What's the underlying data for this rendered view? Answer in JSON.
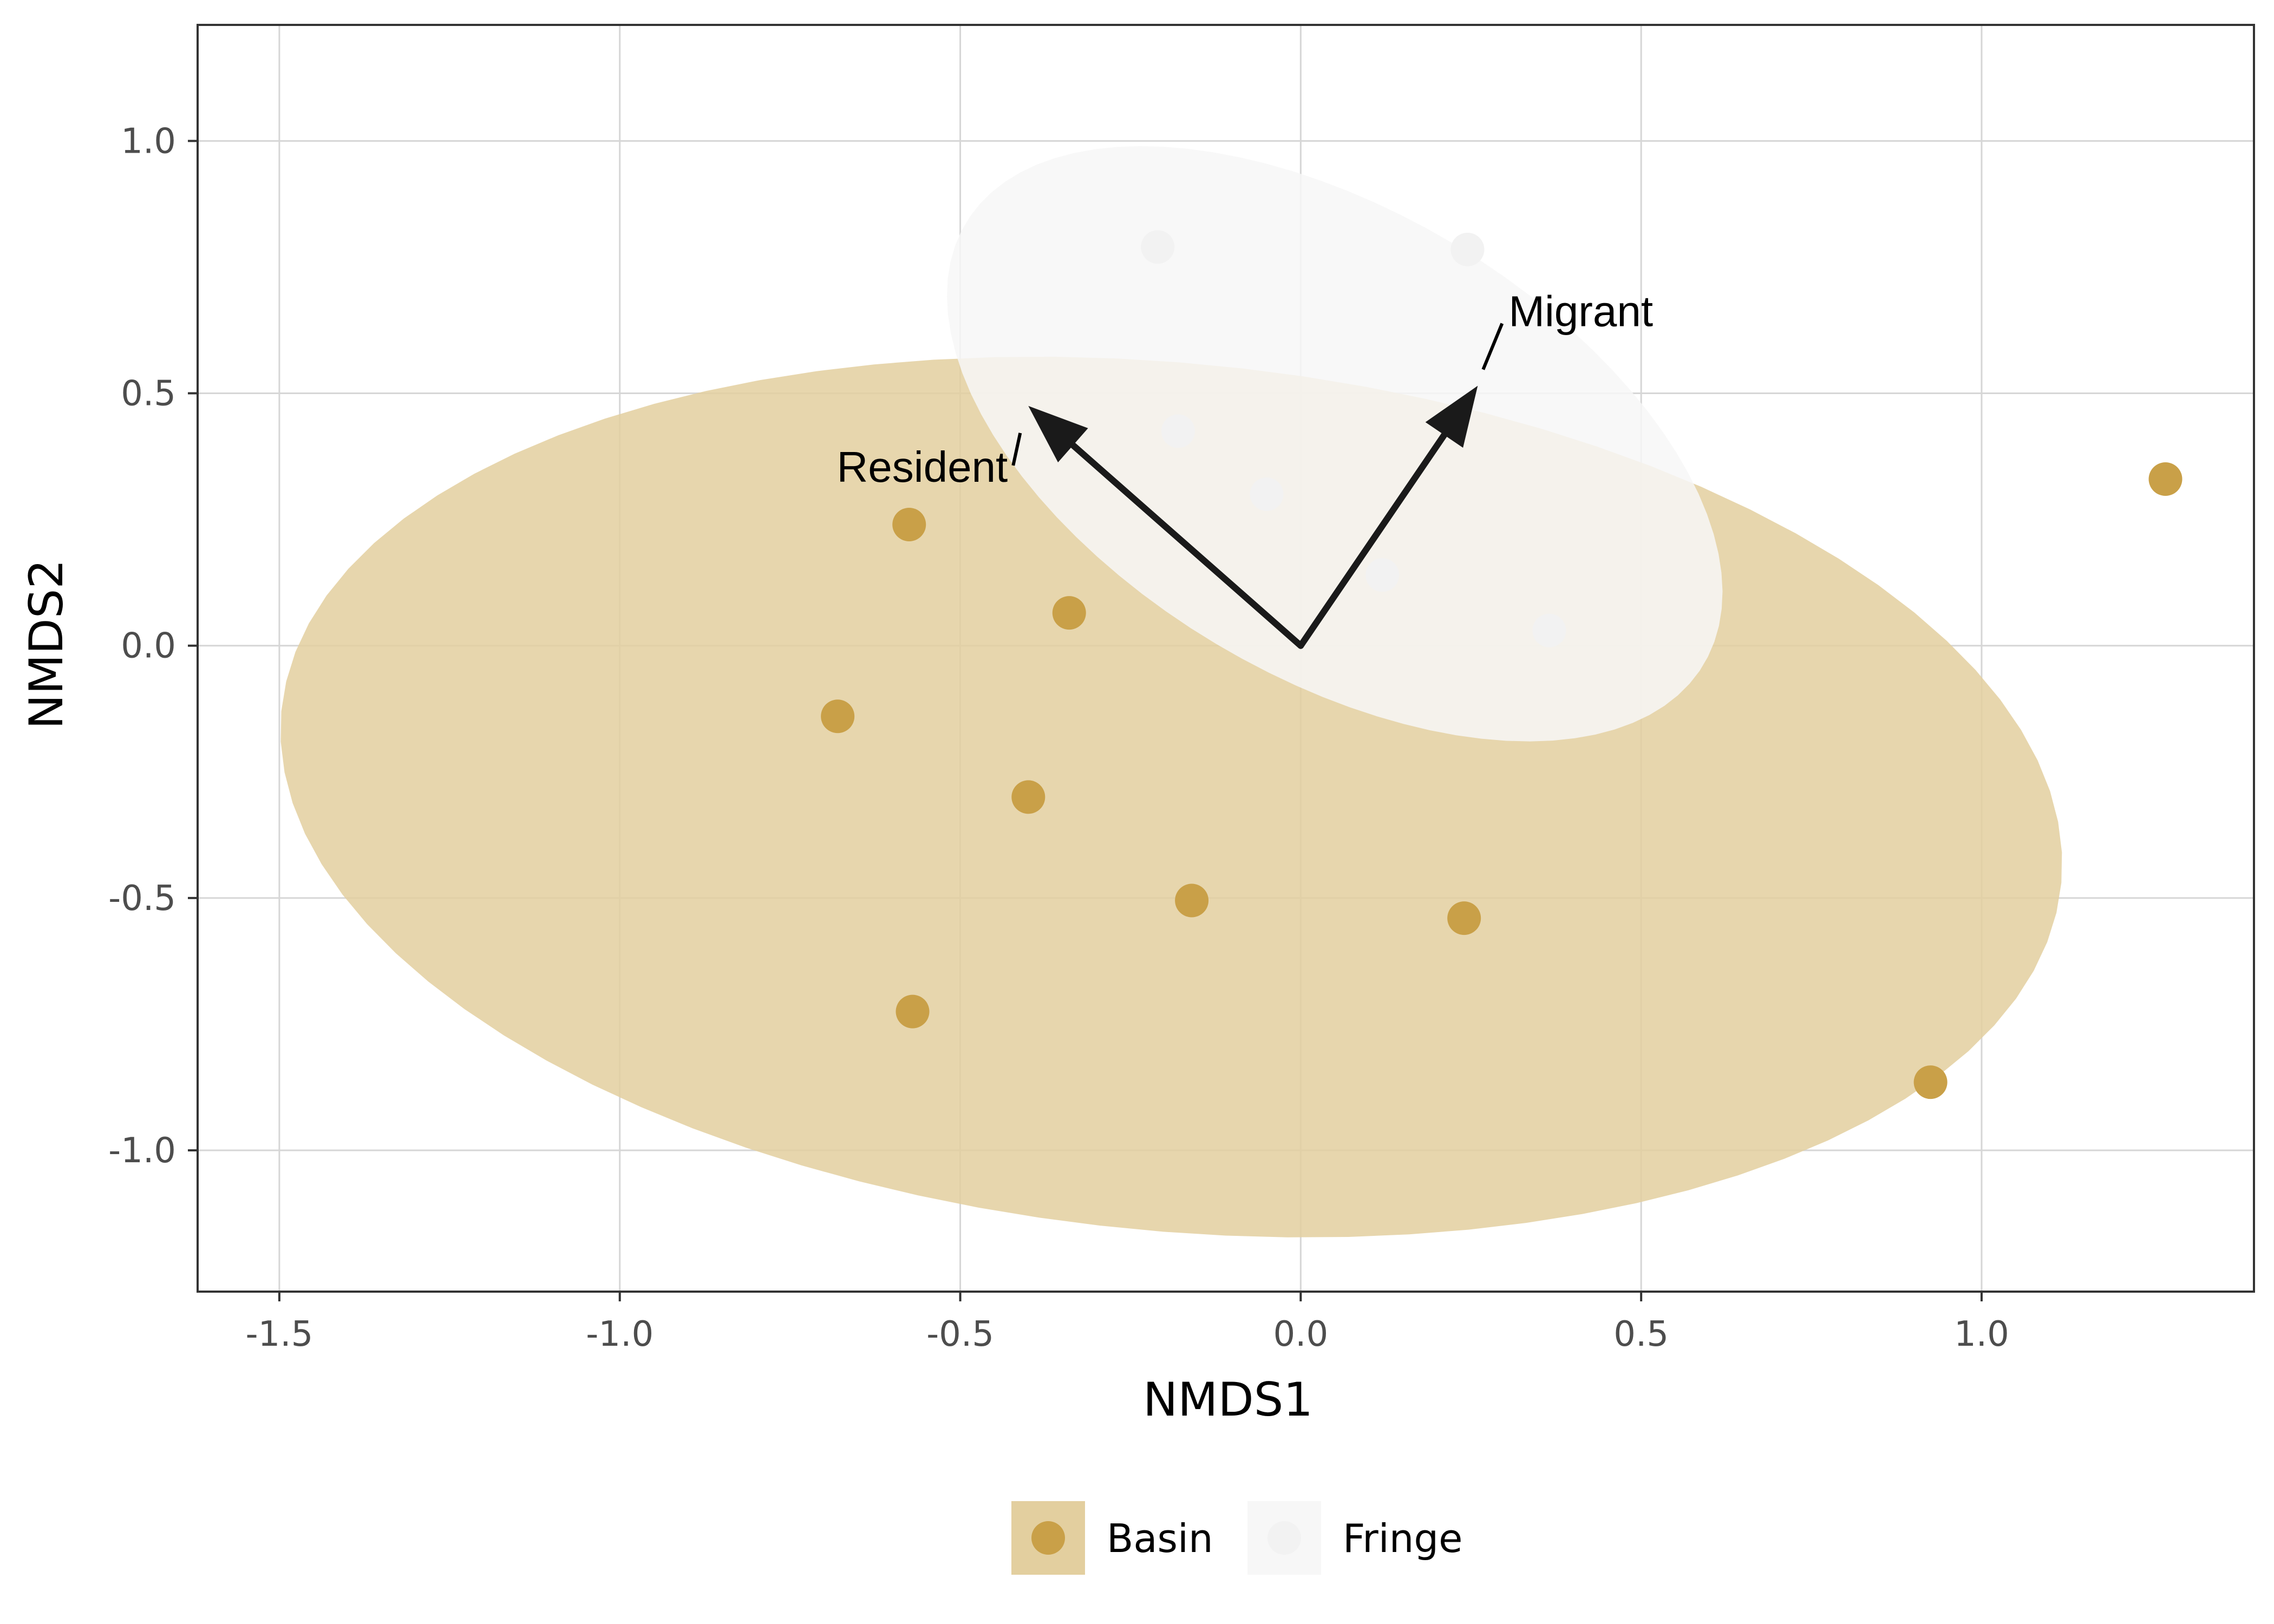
{
  "chart_data": {
    "type": "scatter",
    "xlabel": "NMDS1",
    "ylabel": "NMDS2",
    "xlim": [
      -1.62,
      1.4
    ],
    "ylim": [
      -1.28,
      1.23
    ],
    "x_ticks": [
      -1.5,
      -1.0,
      -0.5,
      0.0,
      0.5,
      1.0
    ],
    "x_tick_labels": [
      "-1.5",
      "-1.0",
      "-0.5",
      "0.0",
      "0.5",
      "1.0"
    ],
    "y_ticks": [
      -1.0,
      -0.5,
      0.0,
      0.5,
      1.0
    ],
    "y_tick_labels": [
      "-1.0",
      "-0.5",
      "0.0",
      "0.5",
      "1.0"
    ],
    "grid": true,
    "legend_position": "bottom",
    "series": [
      {
        "name": "Basin",
        "color": "#c9a048",
        "ellipse_color": "#e3cf9f",
        "points": [
          {
            "x": -0.575,
            "y": 0.24
          },
          {
            "x": -0.34,
            "y": 0.065
          },
          {
            "x": -0.68,
            "y": -0.14
          },
          {
            "x": -0.4,
            "y": -0.3
          },
          {
            "x": -0.16,
            "y": -0.505
          },
          {
            "x": 0.24,
            "y": -0.54
          },
          {
            "x": -0.57,
            "y": -0.725
          },
          {
            "x": 0.925,
            "y": -0.865
          },
          {
            "x": 1.27,
            "y": 0.33
          }
        ],
        "ellipse": {
          "cx": -0.19,
          "cy": -0.3,
          "rx": 1.32,
          "ry": 0.855,
          "angle_deg": -10
        }
      },
      {
        "name": "Fringe",
        "color": "#f2f2f2",
        "ellipse_color": "#f7f7f7",
        "points": [
          {
            "x": -0.21,
            "y": 0.79
          },
          {
            "x": 0.245,
            "y": 0.785
          },
          {
            "x": -0.18,
            "y": 0.425
          },
          {
            "x": -0.05,
            "y": 0.3
          },
          {
            "x": 0.12,
            "y": 0.14
          },
          {
            "x": 0.365,
            "y": 0.03
          }
        ],
        "ellipse": {
          "cx": 0.05,
          "cy": 0.4,
          "rx": 0.71,
          "ry": 0.41,
          "angle_deg": -47
        }
      }
    ],
    "vectors": [
      {
        "label": "Resident",
        "x": -0.4,
        "y": 0.475
      },
      {
        "label": "Migrant",
        "x": 0.26,
        "y": 0.515
      }
    ],
    "legend": {
      "items": [
        "Basin",
        "Fringe"
      ]
    }
  }
}
